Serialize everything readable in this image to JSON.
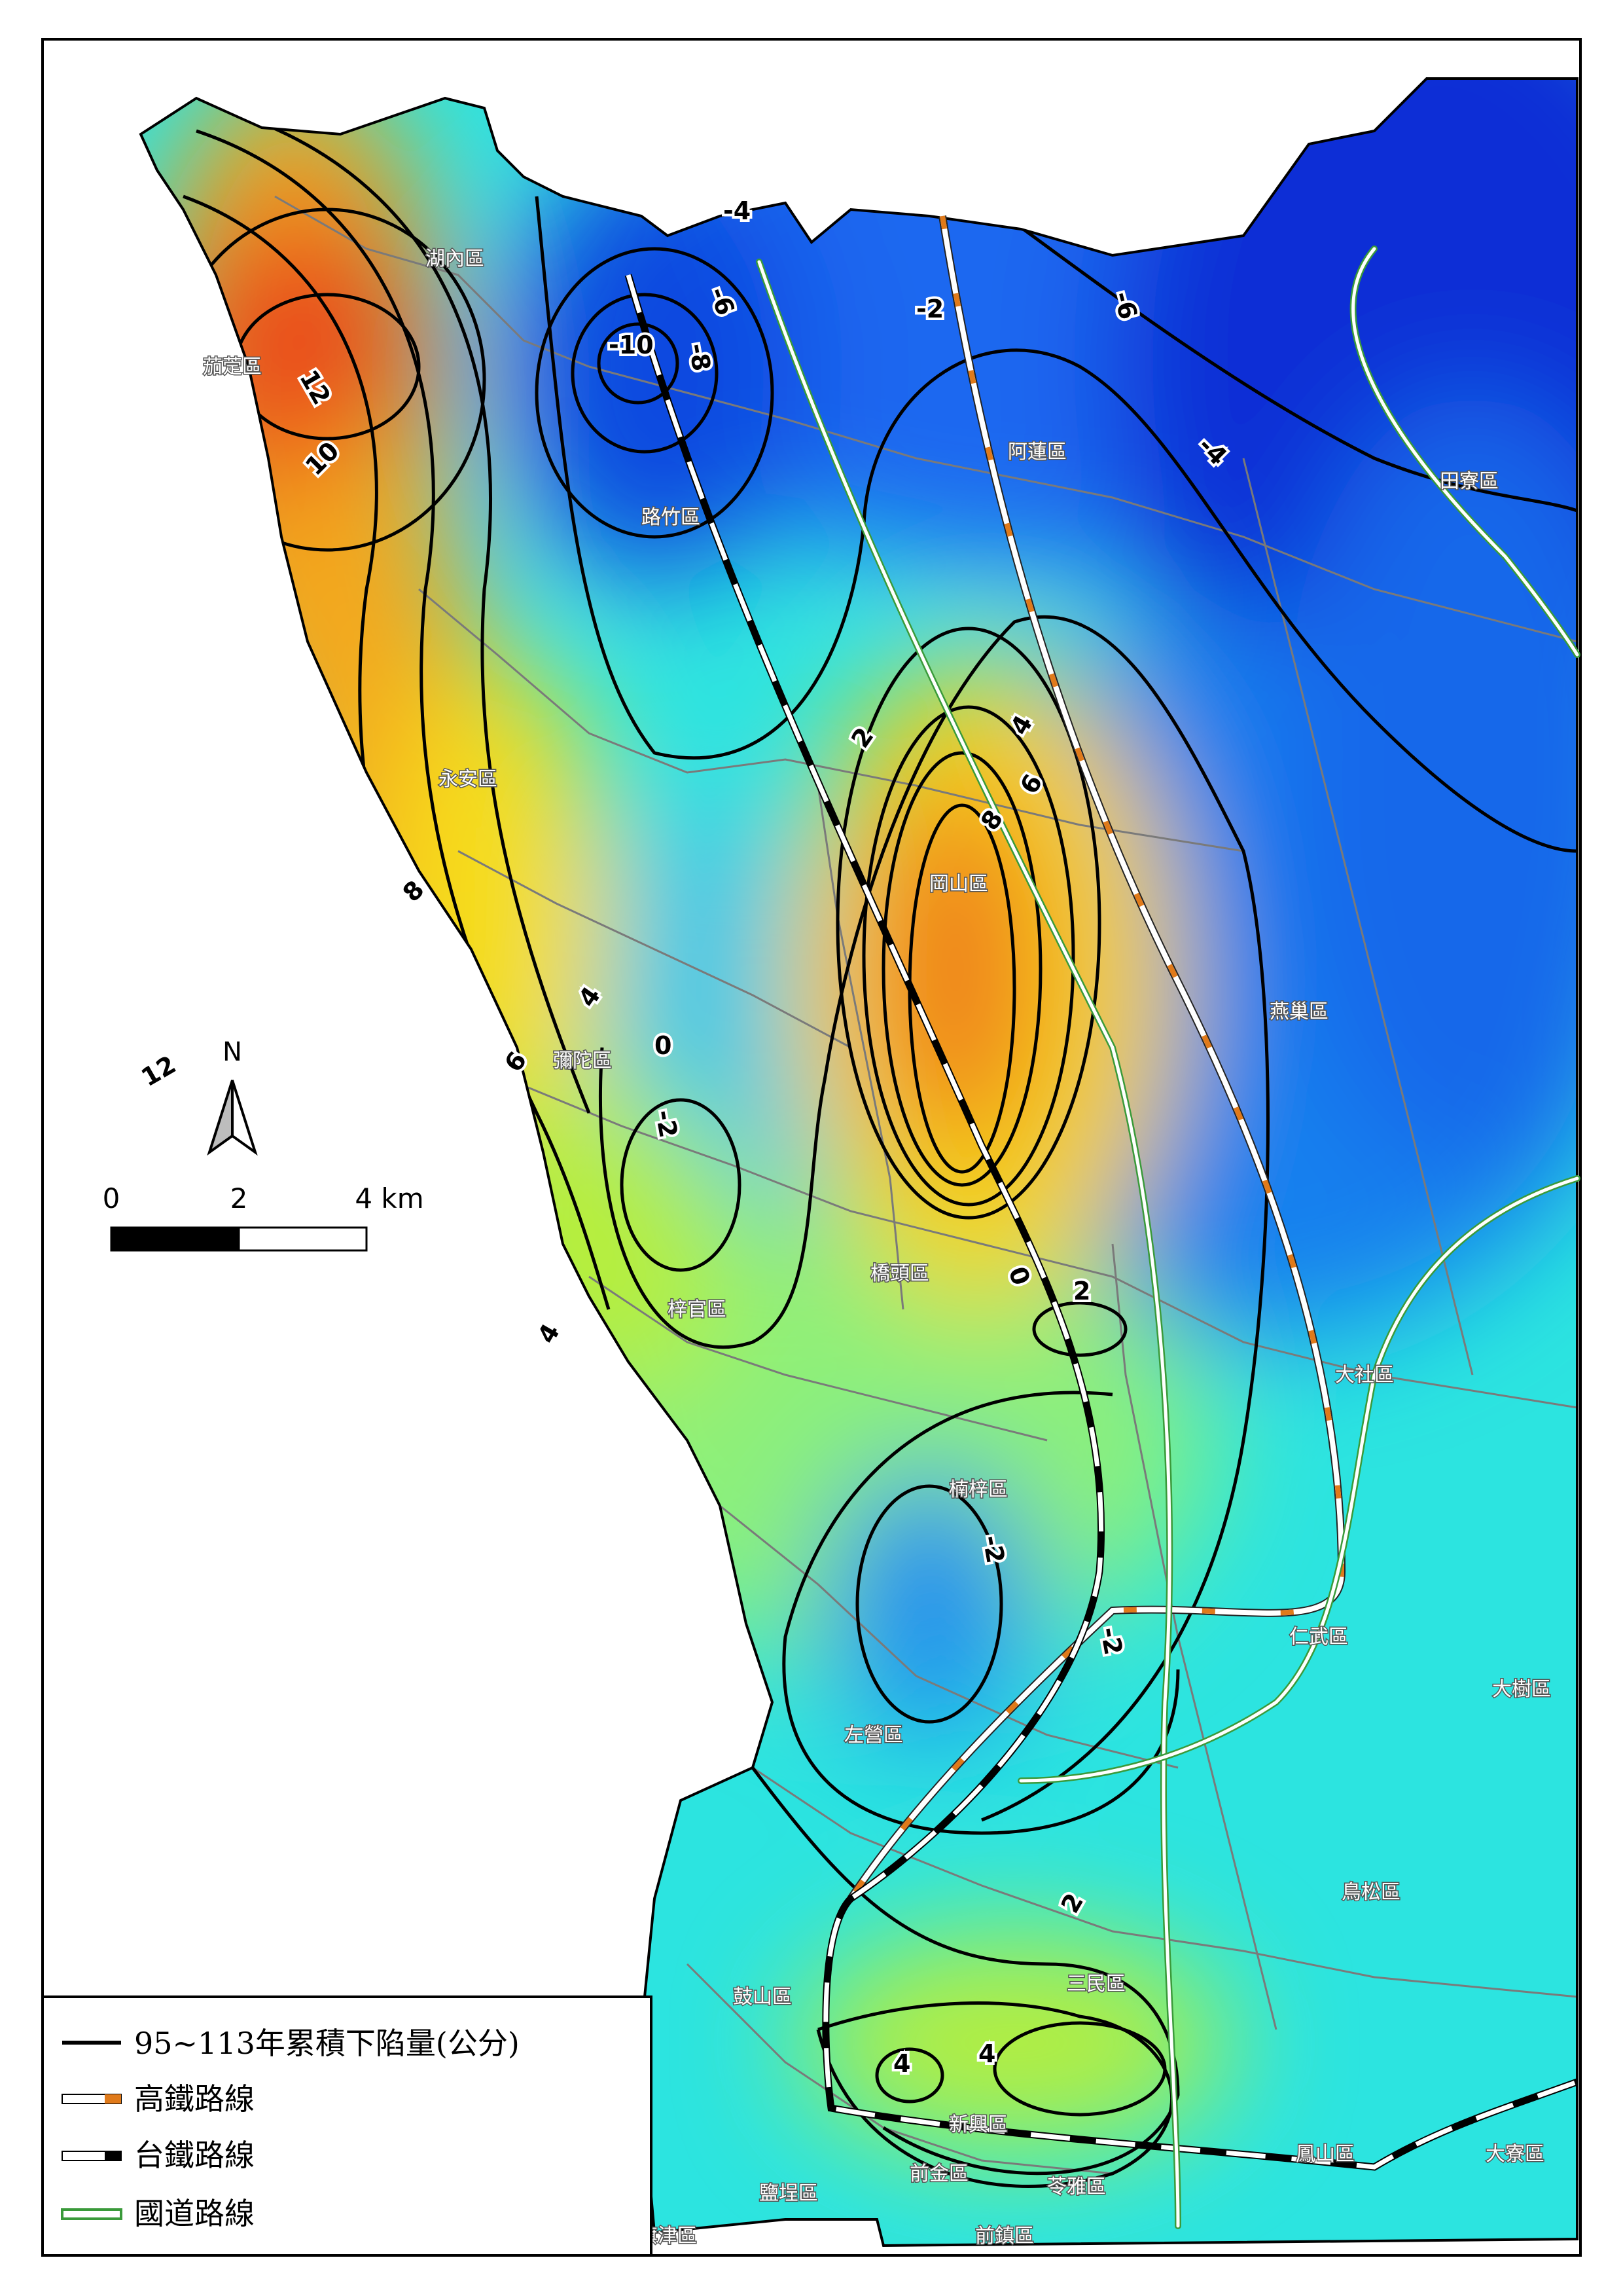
{
  "legend": {
    "items": [
      {
        "label": "95~113年累積下陷量(公分)",
        "symbol": "black-line"
      },
      {
        "label": "高鐵路線",
        "symbol": "hsr-line"
      },
      {
        "label": "台鐵路線",
        "symbol": "tra-line"
      },
      {
        "label": "國道路線",
        "symbol": "freeway-line"
      }
    ]
  },
  "north_arrow": {
    "label": "N"
  },
  "scale_bar": {
    "ticks": [
      "0",
      "2",
      "4 km"
    ]
  },
  "districts": [
    {
      "name": "湖內區"
    },
    {
      "name": "茄萣區"
    },
    {
      "name": "路竹區"
    },
    {
      "name": "阿蓮區"
    },
    {
      "name": "田寮區"
    },
    {
      "name": "永安區"
    },
    {
      "name": "岡山區"
    },
    {
      "name": "燕巢區"
    },
    {
      "name": "彌陀區"
    },
    {
      "name": "梓官區"
    },
    {
      "name": "橋頭區"
    },
    {
      "name": "大社區"
    },
    {
      "name": "楠梓區"
    },
    {
      "name": "仁武區"
    },
    {
      "name": "大樹區"
    },
    {
      "name": "左營區"
    },
    {
      "name": "鳥松區"
    },
    {
      "name": "鼓山區"
    },
    {
      "name": "三民區"
    },
    {
      "name": "新興區"
    },
    {
      "name": "前金區"
    },
    {
      "name": "鳳山區"
    },
    {
      "name": "大寮區"
    },
    {
      "name": "鹽埕區"
    },
    {
      "name": "苓雅區"
    },
    {
      "name": "旗津區"
    },
    {
      "name": "前鎮區"
    }
  ],
  "contour_labels": [
    "-4",
    "-6",
    "-8",
    "-10",
    "-2",
    "-6",
    "-4",
    "12",
    "10",
    "8",
    "6",
    "4",
    "0",
    "-2",
    "2",
    "4",
    "6",
    "8",
    "0",
    "2",
    "-2",
    "-2",
    "2",
    "4",
    "4",
    "12",
    "4"
  ],
  "colors": {
    "subsidence_high": "#e8401a",
    "subsidence_mid": "#f6e21c",
    "neutral": "#86f06a",
    "uplift_low": "#16e8e6",
    "uplift_high": "#0a30d8",
    "hsr_accent": "#e07a1a",
    "freeway": "#3a9a3a"
  }
}
